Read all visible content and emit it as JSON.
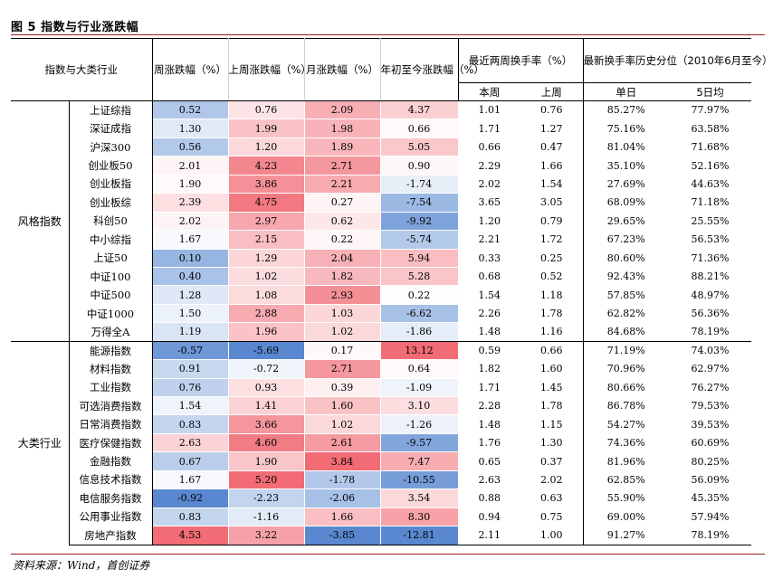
{
  "title": "图 5 指数与行业涨跌幅",
  "headers": {
    "index_industry": "指数与大类行业",
    "week_chg": "周涨跌幅（%）",
    "last_week_chg": "上周涨跌幅（%）",
    "month_chg": "月涨跌幅（%）",
    "ytd_chg": "年初至今涨跌幅（%）",
    "turnover": "最近两周换手率（%）",
    "turnover_this_week": "本周",
    "turnover_last_week": "上周",
    "pct": "最新换手率历史分位（2010年6月至今）",
    "pct_day": "单日",
    "pct_5d": "5日均"
  },
  "groups": [
    {
      "name": "风格指数",
      "rows": [
        {
          "name": "上证综指",
          "w": "0.52",
          "lw": "0.76",
          "m": "2.09",
          "ytd": "4.37",
          "t1": "1.01",
          "t2": "0.76",
          "p1": "85.27%",
          "p2": "77.97%"
        },
        {
          "name": "深证成指",
          "w": "1.30",
          "lw": "1.99",
          "m": "1.98",
          "ytd": "0.66",
          "t1": "1.71",
          "t2": "1.27",
          "p1": "75.16%",
          "p2": "63.58%"
        },
        {
          "name": "沪深300",
          "w": "0.56",
          "lw": "1.20",
          "m": "1.89",
          "ytd": "5.05",
          "t1": "0.66",
          "t2": "0.47",
          "p1": "81.04%",
          "p2": "71.68%"
        },
        {
          "name": "创业板50",
          "w": "2.01",
          "lw": "4.23",
          "m": "2.71",
          "ytd": "0.90",
          "t1": "2.29",
          "t2": "1.66",
          "p1": "35.10%",
          "p2": "52.16%"
        },
        {
          "name": "创业板指",
          "w": "1.90",
          "lw": "3.86",
          "m": "2.21",
          "ytd": "-1.74",
          "t1": "2.02",
          "t2": "1.54",
          "p1": "27.69%",
          "p2": "44.63%"
        },
        {
          "name": "创业板综",
          "w": "2.39",
          "lw": "4.75",
          "m": "0.27",
          "ytd": "-7.54",
          "t1": "3.65",
          "t2": "3.05",
          "p1": "68.09%",
          "p2": "71.18%"
        },
        {
          "name": "科创50",
          "w": "2.02",
          "lw": "2.97",
          "m": "0.62",
          "ytd": "-9.92",
          "t1": "1.20",
          "t2": "0.79",
          "p1": "29.65%",
          "p2": "25.55%"
        },
        {
          "name": "中小综指",
          "w": "1.67",
          "lw": "2.15",
          "m": "0.22",
          "ytd": "-5.74",
          "t1": "2.21",
          "t2": "1.72",
          "p1": "67.23%",
          "p2": "56.53%"
        },
        {
          "name": "上证50",
          "w": "0.10",
          "lw": "1.29",
          "m": "2.04",
          "ytd": "5.94",
          "t1": "0.33",
          "t2": "0.25",
          "p1": "80.60%",
          "p2": "71.36%"
        },
        {
          "name": "中证100",
          "w": "0.40",
          "lw": "1.02",
          "m": "1.82",
          "ytd": "5.28",
          "t1": "0.68",
          "t2": "0.52",
          "p1": "92.43%",
          "p2": "88.21%"
        },
        {
          "name": "中证500",
          "w": "1.28",
          "lw": "1.08",
          "m": "2.93",
          "ytd": "0.22",
          "t1": "1.54",
          "t2": "1.18",
          "p1": "57.85%",
          "p2": "48.97%"
        },
        {
          "name": "中证1000",
          "w": "1.50",
          "lw": "2.88",
          "m": "1.03",
          "ytd": "-6.62",
          "t1": "2.26",
          "t2": "1.78",
          "p1": "62.82%",
          "p2": "56.36%"
        },
        {
          "name": "万得全A",
          "w": "1.19",
          "lw": "1.96",
          "m": "1.02",
          "ytd": "-1.86",
          "t1": "1.48",
          "t2": "1.16",
          "p1": "84.68%",
          "p2": "78.19%"
        }
      ]
    },
    {
      "name": "大类行业",
      "rows": [
        {
          "name": "能源指数",
          "w": "-0.57",
          "lw": "-5.69",
          "m": "0.17",
          "ytd": "13.12",
          "t1": "0.59",
          "t2": "0.66",
          "p1": "71.19%",
          "p2": "74.03%"
        },
        {
          "name": "材料指数",
          "w": "0.91",
          "lw": "-0.72",
          "m": "2.71",
          "ytd": "0.64",
          "t1": "1.82",
          "t2": "1.60",
          "p1": "70.96%",
          "p2": "62.97%"
        },
        {
          "name": "工业指数",
          "w": "0.76",
          "lw": "0.93",
          "m": "0.39",
          "ytd": "-1.09",
          "t1": "1.71",
          "t2": "1.45",
          "p1": "80.66%",
          "p2": "76.27%"
        },
        {
          "name": "可选消费指数",
          "w": "1.54",
          "lw": "1.41",
          "m": "1.60",
          "ytd": "3.10",
          "t1": "2.28",
          "t2": "1.78",
          "p1": "86.78%",
          "p2": "79.53%"
        },
        {
          "name": "日常消费指数",
          "w": "0.83",
          "lw": "3.66",
          "m": "1.02",
          "ytd": "-1.26",
          "t1": "1.48",
          "t2": "1.15",
          "p1": "54.27%",
          "p2": "39.53%"
        },
        {
          "name": "医疗保健指数",
          "w": "2.63",
          "lw": "4.60",
          "m": "2.61",
          "ytd": "-9.57",
          "t1": "1.76",
          "t2": "1.30",
          "p1": "74.36%",
          "p2": "60.69%"
        },
        {
          "name": "金融指数",
          "w": "0.67",
          "lw": "1.90",
          "m": "3.84",
          "ytd": "7.47",
          "t1": "0.65",
          "t2": "0.37",
          "p1": "81.96%",
          "p2": "80.25%"
        },
        {
          "name": "信息技术指数",
          "w": "1.67",
          "lw": "5.20",
          "m": "-1.78",
          "ytd": "-10.55",
          "t1": "2.63",
          "t2": "2.02",
          "p1": "62.85%",
          "p2": "56.09%"
        },
        {
          "name": "电信服务指数",
          "w": "-0.92",
          "lw": "-2.23",
          "m": "-2.06",
          "ytd": "3.54",
          "t1": "0.88",
          "t2": "0.63",
          "p1": "55.90%",
          "p2": "45.35%"
        },
        {
          "name": "公用事业指数",
          "w": "0.83",
          "lw": "-1.16",
          "m": "1.66",
          "ytd": "8.30",
          "t1": "0.94",
          "t2": "0.75",
          "p1": "69.00%",
          "p2": "57.94%"
        },
        {
          "name": "房地产指数",
          "w": "4.53",
          "lw": "3.22",
          "m": "-3.85",
          "ytd": "-12.81",
          "t1": "2.11",
          "t2": "1.00",
          "p1": "91.27%",
          "p2": "78.19%"
        }
      ]
    }
  ],
  "footer": "资料来源：Wind，首创证券"
}
